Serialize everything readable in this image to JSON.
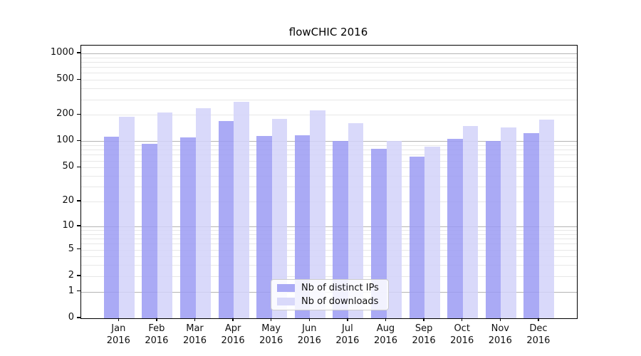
{
  "title": "flowCHIC 2016",
  "chart_data": {
    "type": "bar",
    "yscale": "log1p",
    "grid": true,
    "legend_position": "lower center",
    "year_label": "2016",
    "categories": [
      "Jan",
      "Feb",
      "Mar",
      "Apr",
      "May",
      "Jun",
      "Jul",
      "Aug",
      "Sep",
      "Oct",
      "Nov",
      "Dec"
    ],
    "yticks": [
      0,
      1,
      2,
      5,
      10,
      20,
      50,
      100,
      200,
      500,
      1000
    ],
    "ylim": [
      0,
      1000
    ],
    "series": [
      {
        "name": "Nb of distinct IPs",
        "color": "rgba(155,155,243,0.85)",
        "values": [
          113,
          94,
          110,
          170,
          114,
          118,
          101,
          82,
          67,
          107,
          101,
          124
        ]
      },
      {
        "name": "Nb of downloads",
        "color": "rgba(210,210,249,0.85)",
        "values": [
          190,
          215,
          240,
          282,
          180,
          226,
          160,
          100,
          87,
          149,
          143,
          177
        ]
      }
    ]
  },
  "colors": {
    "grid_major": "#b4b4b4",
    "grid_minor": "#e7e7e7",
    "spine": "#000000",
    "background": "#ffffff"
  }
}
